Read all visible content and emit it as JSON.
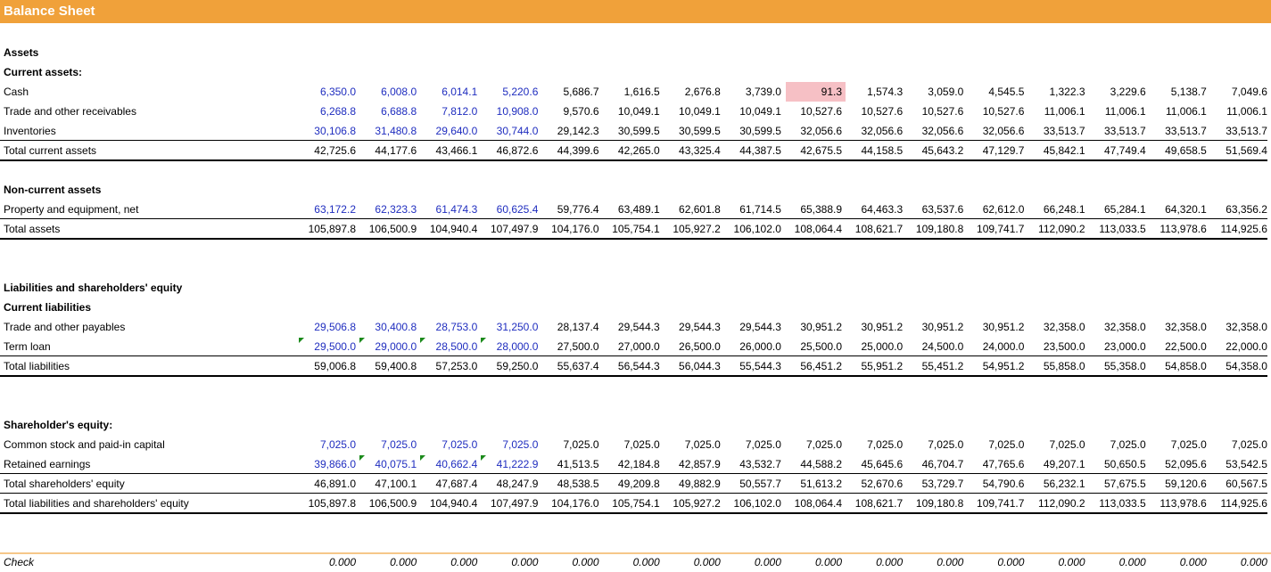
{
  "title": "Balance Sheet",
  "colors": {
    "orange": "#F0A13A",
    "input_blue": "#1F2DBF",
    "highlight": "#F6C0C5",
    "comment_green": "#1B8A1B"
  },
  "rows": [
    {
      "label": "Assets",
      "style": "bold"
    },
    {
      "label": "Current assets:",
      "style": "bold"
    },
    {
      "label": "Cash",
      "values": [
        "6,350.0",
        "6,008.0",
        "6,014.1",
        "5,220.6",
        "5,686.7",
        "1,616.5",
        "2,676.8",
        "3,739.0",
        "91.3",
        "1,574.3",
        "3,059.0",
        "4,545.5",
        "1,322.3",
        "3,229.6",
        "5,138.7",
        "7,049.6"
      ],
      "blue_count": 4,
      "highlight_col": 8
    },
    {
      "label": "Trade and other receivables",
      "values": [
        "6,268.8",
        "6,688.8",
        "7,812.0",
        "10,908.0",
        "9,570.6",
        "10,049.1",
        "10,049.1",
        "10,049.1",
        "10,527.6",
        "10,527.6",
        "10,527.6",
        "10,527.6",
        "11,006.1",
        "11,006.1",
        "11,006.1",
        "11,006.1"
      ],
      "blue_count": 4
    },
    {
      "label": "Inventories",
      "values": [
        "30,106.8",
        "31,480.8",
        "29,640.0",
        "30,744.0",
        "29,142.3",
        "30,599.5",
        "30,599.5",
        "30,599.5",
        "32,056.6",
        "32,056.6",
        "32,056.6",
        "32,056.6",
        "33,513.7",
        "33,513.7",
        "33,513.7",
        "33,513.7"
      ],
      "blue_count": 4
    },
    {
      "label": "Total current assets",
      "values": [
        "42,725.6",
        "44,177.6",
        "43,466.1",
        "46,872.6",
        "44,399.6",
        "42,265.0",
        "43,325.4",
        "44,387.5",
        "42,675.5",
        "44,158.5",
        "45,643.2",
        "47,129.7",
        "45,842.1",
        "47,749.4",
        "49,658.5",
        "51,569.4"
      ]
    },
    {
      "label": ""
    },
    {
      "label": "Non-current assets",
      "style": "bold"
    },
    {
      "label": "Property and equipment, net",
      "values": [
        "63,172.2",
        "62,323.3",
        "61,474.3",
        "60,625.4",
        "59,776.4",
        "63,489.1",
        "62,601.8",
        "61,714.5",
        "65,388.9",
        "64,463.3",
        "63,537.6",
        "62,612.0",
        "66,248.1",
        "65,284.1",
        "64,320.1",
        "63,356.2"
      ],
      "blue_count": 4
    },
    {
      "label": "Total assets",
      "values": [
        "105,897.8",
        "106,500.9",
        "104,940.4",
        "107,497.9",
        "104,176.0",
        "105,754.1",
        "105,927.2",
        "106,102.0",
        "108,064.4",
        "108,621.7",
        "109,180.8",
        "109,741.7",
        "112,090.2",
        "113,033.5",
        "113,978.6",
        "114,925.6"
      ]
    },
    {
      "label": ""
    },
    {
      "label": ""
    },
    {
      "label": "Liabilities and shareholders' equity",
      "style": "bold"
    },
    {
      "label": "Current liabilities",
      "style": "bold"
    },
    {
      "label": "Trade and other payables",
      "values": [
        "29,506.8",
        "30,400.8",
        "28,753.0",
        "31,250.0",
        "28,137.4",
        "29,544.3",
        "29,544.3",
        "29,544.3",
        "30,951.2",
        "30,951.2",
        "30,951.2",
        "30,951.2",
        "32,358.0",
        "32,358.0",
        "32,358.0",
        "32,358.0"
      ],
      "blue_count": 4
    },
    {
      "label": "Term loan",
      "values": [
        "29,500.0",
        "29,000.0",
        "28,500.0",
        "28,000.0",
        "27,500.0",
        "27,000.0",
        "26,500.0",
        "26,000.0",
        "25,500.0",
        "25,000.0",
        "24,500.0",
        "24,000.0",
        "23,500.0",
        "23,000.0",
        "22,500.0",
        "22,000.0"
      ],
      "blue_count": 4,
      "triangles": [
        0,
        1,
        2,
        3
      ]
    },
    {
      "label": "Total liabilities",
      "values": [
        "59,006.8",
        "59,400.8",
        "57,253.0",
        "59,250.0",
        "55,637.4",
        "56,544.3",
        "56,044.3",
        "55,544.3",
        "56,451.2",
        "55,951.2",
        "55,451.2",
        "54,951.2",
        "55,858.0",
        "55,358.0",
        "54,858.0",
        "54,358.0"
      ]
    },
    {
      "label": ""
    },
    {
      "label": ""
    },
    {
      "label": "Shareholder's equity:",
      "style": "bold"
    },
    {
      "label": "Common stock and paid-in capital",
      "values": [
        "7,025.0",
        "7,025.0",
        "7,025.0",
        "7,025.0",
        "7,025.0",
        "7,025.0",
        "7,025.0",
        "7,025.0",
        "7,025.0",
        "7,025.0",
        "7,025.0",
        "7,025.0",
        "7,025.0",
        "7,025.0",
        "7,025.0",
        "7,025.0"
      ],
      "blue_count": 4
    },
    {
      "label": "Retained earnings",
      "values": [
        "39,866.0",
        "40,075.1",
        "40,662.4",
        "41,222.9",
        "41,513.5",
        "42,184.8",
        "42,857.9",
        "43,532.7",
        "44,588.2",
        "45,645.6",
        "46,704.7",
        "47,765.6",
        "49,207.1",
        "50,650.5",
        "52,095.6",
        "53,542.5"
      ],
      "blue_count": 4,
      "triangles": [
        1,
        2,
        3
      ]
    },
    {
      "label": "Total shareholders' equity",
      "values": [
        "46,891.0",
        "47,100.1",
        "47,687.4",
        "48,247.9",
        "48,538.5",
        "49,209.8",
        "49,882.9",
        "50,557.7",
        "51,613.2",
        "52,670.6",
        "53,729.7",
        "54,790.6",
        "56,232.1",
        "57,675.5",
        "59,120.6",
        "60,567.5"
      ]
    },
    {
      "label": "Total liabilities and shareholders' equity",
      "values": [
        "105,897.8",
        "106,500.9",
        "104,940.4",
        "107,497.9",
        "104,176.0",
        "105,754.1",
        "105,927.2",
        "106,102.0",
        "108,064.4",
        "108,621.7",
        "109,180.8",
        "109,741.7",
        "112,090.2",
        "113,033.5",
        "113,978.6",
        "114,925.6"
      ]
    },
    {
      "label": ""
    },
    {
      "label": ""
    },
    {
      "label": "Check",
      "style": "italic",
      "values": [
        "0.000",
        "0.000",
        "0.000",
        "0.000",
        "0.000",
        "0.000",
        "0.000",
        "0.000",
        "0.000",
        "0.000",
        "0.000",
        "0.000",
        "0.000",
        "0.000",
        "0.000",
        "0.000"
      ]
    }
  ]
}
